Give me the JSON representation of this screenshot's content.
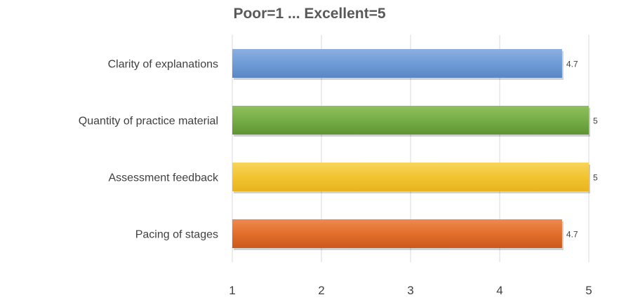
{
  "chart_data": {
    "type": "bar",
    "orientation": "horizontal",
    "title": "Poor=1 ... Excellent=5",
    "categories": [
      "Clarity of explanations",
      "Quantity of practice material",
      "Assessment feedback",
      "Pacing of stages"
    ],
    "values": [
      4.7,
      5,
      5,
      4.7
    ],
    "data_labels": [
      "4.7",
      "5",
      "5",
      "4.7"
    ],
    "xlim": [
      1,
      5
    ],
    "x_ticks": [
      1,
      2,
      3,
      4,
      5
    ],
    "x_tick_labels": [
      "1",
      "2",
      "3",
      "4",
      "5"
    ],
    "grid": "vertical",
    "legend": "none",
    "colors": [
      "#6f9bd6",
      "#77ad47",
      "#f2c431",
      "#e26e2c"
    ],
    "gradient_dark": [
      "#5a86c4",
      "#5e9533",
      "#e8b41e",
      "#cc5a1c"
    ],
    "gradient_light": [
      "#8cb0e0",
      "#8fc05d",
      "#f7d45c",
      "#ec8b4f"
    ]
  }
}
